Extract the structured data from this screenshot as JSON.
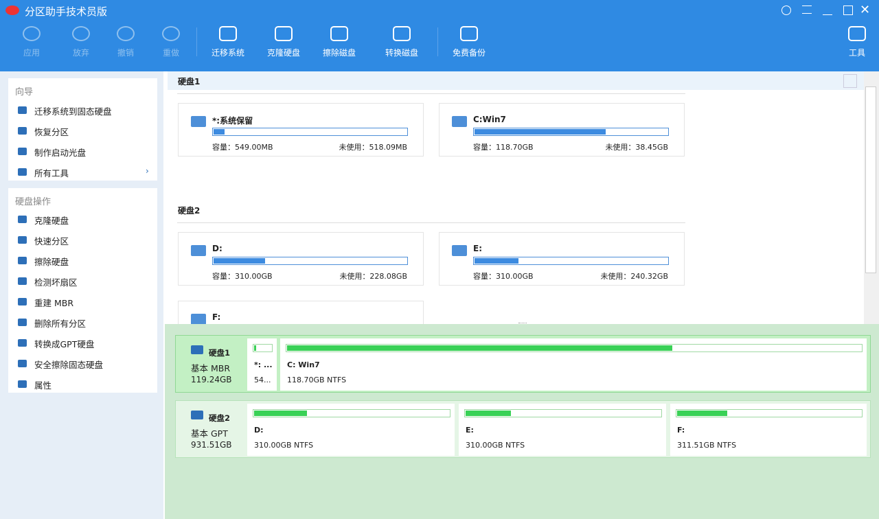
{
  "window": {
    "title": "分区助手技术员版"
  },
  "toolbar": {
    "items": [
      "应用",
      "放弃",
      "撤销",
      "重做",
      "迁移系统",
      "克隆硬盘",
      "擦除磁盘",
      "转换磁盘",
      "免费备份",
      "工具"
    ]
  },
  "sidebar": {
    "wizard": {
      "title": "向导",
      "items": [
        "迁移系统到固态硬盘",
        "恢复分区",
        "制作启动光盘",
        "所有工具"
      ]
    },
    "disk_ops": {
      "title": "硬盘操作",
      "items": [
        "克隆硬盘",
        "快速分区",
        "擦除硬盘",
        "检测坏扇区",
        "重建 MBR",
        "删除所有分区",
        "转换成GPT硬盘",
        "安全擦除固态硬盘",
        "属性"
      ]
    }
  },
  "disks": [
    {
      "label": "硬盘1",
      "partitions": [
        {
          "name": "*:系统保留",
          "capacity": "容量：549.00MB",
          "free": "未使用：518.09MB"
        },
        {
          "name": "C:Win7",
          "capacity": "容量：118.70GB",
          "free": "未使用：38.45GB"
        }
      ]
    },
    {
      "label": "硬盘2",
      "partitions": [
        {
          "name": "D:",
          "capacity": "容量：310.00GB",
          "free": "未使用：228.08GB"
        },
        {
          "name": "E:",
          "capacity": "容量：310.00GB",
          "free": "未使用：240.32GB"
        },
        {
          "name": "F:"
        }
      ]
    }
  ],
  "disk_map": [
    {
      "name": "硬盘1",
      "type": "基本 MBR",
      "size": "119.24GB",
      "partitions": [
        {
          "name": "*: ...",
          "info": "54..."
        },
        {
          "name": "C: Win7",
          "info": "118.70GB NTFS"
        }
      ]
    },
    {
      "name": "硬盘2",
      "type": "基本 GPT",
      "size": "931.51GB",
      "partitions": [
        {
          "name": "D:",
          "info": "310.00GB NTFS"
        },
        {
          "name": "E:",
          "info": "310.00GB NTFS"
        },
        {
          "name": "F:",
          "info": "311.51GB NTFS"
        }
      ]
    }
  ]
}
